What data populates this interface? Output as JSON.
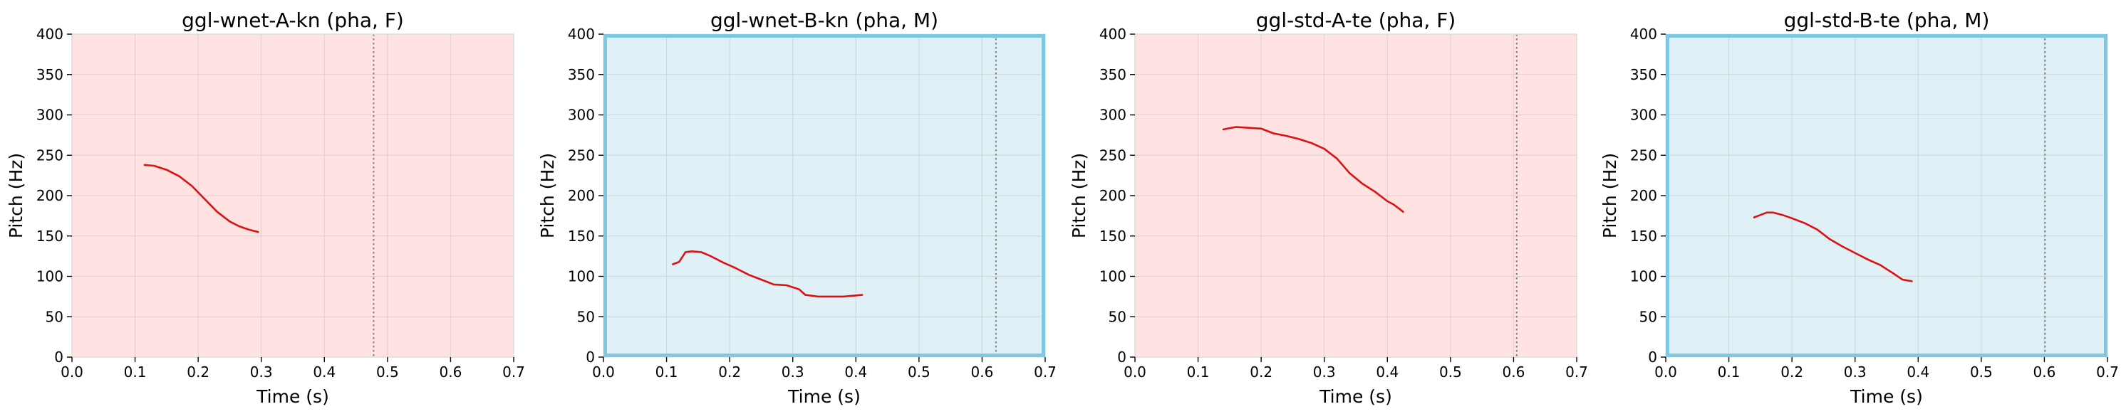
{
  "chart_data": [
    {
      "type": "line",
      "title": "ggl-wnet-A-kn (pha, F)",
      "xlabel": "Time (s)",
      "ylabel": "Pitch (Hz)",
      "xlim": [
        0,
        0.7
      ],
      "ylim": [
        0,
        400
      ],
      "xticks": [
        "0.0",
        "0.1",
        "0.2",
        "0.3",
        "0.4",
        "0.5",
        "0.6",
        "0.7"
      ],
      "yticks": [
        "0",
        "50",
        "100",
        "150",
        "200",
        "250",
        "300",
        "350",
        "400"
      ],
      "grid": true,
      "background": "#ffe3e2",
      "frame_color": "#dddddd",
      "highlighted": false,
      "line_color": "#dd1111",
      "vline_x": 0.478,
      "vline_color": "#888888",
      "series": [
        {
          "x": [
            0.115,
            0.13,
            0.15,
            0.17,
            0.19,
            0.21,
            0.23,
            0.25,
            0.265,
            0.28,
            0.295
          ],
          "y": [
            238,
            237,
            232,
            224,
            212,
            196,
            180,
            168,
            162,
            158,
            155
          ]
        }
      ]
    },
    {
      "type": "line",
      "title": "ggl-wnet-B-kn (pha, M)",
      "xlabel": "Time (s)",
      "ylabel": "Pitch (Hz)",
      "xlim": [
        0,
        0.7
      ],
      "ylim": [
        0,
        400
      ],
      "xticks": [
        "0.0",
        "0.1",
        "0.2",
        "0.3",
        "0.4",
        "0.5",
        "0.6",
        "0.7"
      ],
      "yticks": [
        "0",
        "50",
        "100",
        "150",
        "200",
        "250",
        "300",
        "350",
        "400"
      ],
      "grid": true,
      "background": "#dff0f6",
      "frame_color": "#7ec8e3",
      "highlighted": true,
      "line_color": "#dd1111",
      "vline_x": 0.622,
      "vline_color": "#888888",
      "series": [
        {
          "x": [
            0.11,
            0.12,
            0.13,
            0.14,
            0.155,
            0.17,
            0.19,
            0.21,
            0.23,
            0.25,
            0.27,
            0.29,
            0.31,
            0.32,
            0.34,
            0.36,
            0.38,
            0.41
          ],
          "y": [
            115,
            118,
            130,
            131,
            130,
            125,
            117,
            110,
            102,
            96,
            90,
            89,
            84,
            77,
            75,
            75,
            75,
            77
          ]
        }
      ]
    },
    {
      "type": "line",
      "title": "ggl-std-A-te (pha, F)",
      "xlabel": "Time (s)",
      "ylabel": "Pitch (Hz)",
      "xlim": [
        0,
        0.7
      ],
      "ylim": [
        0,
        400
      ],
      "xticks": [
        "0.0",
        "0.1",
        "0.2",
        "0.3",
        "0.4",
        "0.5",
        "0.6",
        "0.7"
      ],
      "yticks": [
        "0",
        "50",
        "100",
        "150",
        "200",
        "250",
        "300",
        "350",
        "400"
      ],
      "grid": true,
      "background": "#ffe3e2",
      "frame_color": "#dddddd",
      "highlighted": false,
      "line_color": "#dd1111",
      "vline_x": 0.605,
      "vline_color": "#888888",
      "series": [
        {
          "x": [
            0.14,
            0.16,
            0.18,
            0.2,
            0.22,
            0.24,
            0.26,
            0.28,
            0.3,
            0.32,
            0.34,
            0.36,
            0.38,
            0.4,
            0.41,
            0.425
          ],
          "y": [
            282,
            285,
            284,
            283,
            277,
            274,
            270,
            265,
            258,
            246,
            228,
            215,
            205,
            193,
            189,
            180
          ]
        }
      ]
    },
    {
      "type": "line",
      "title": "ggl-std-B-te (pha, M)",
      "xlabel": "Time (s)",
      "ylabel": "Pitch (Hz)",
      "xlim": [
        0,
        0.7
      ],
      "ylim": [
        0,
        400
      ],
      "xticks": [
        "0.0",
        "0.1",
        "0.2",
        "0.3",
        "0.4",
        "0.5",
        "0.6",
        "0.7"
      ],
      "yticks": [
        "0",
        "50",
        "100",
        "150",
        "200",
        "250",
        "300",
        "350",
        "400"
      ],
      "grid": true,
      "background": "#dff0f6",
      "frame_color": "#7ec8e3",
      "highlighted": true,
      "line_color": "#dd1111",
      "vline_x": 0.601,
      "vline_color": "#888888",
      "series": [
        {
          "x": [
            0.14,
            0.15,
            0.16,
            0.17,
            0.185,
            0.2,
            0.22,
            0.24,
            0.26,
            0.28,
            0.3,
            0.32,
            0.34,
            0.36,
            0.375,
            0.39
          ],
          "y": [
            173,
            176,
            179,
            179,
            176,
            172,
            166,
            158,
            146,
            137,
            129,
            121,
            114,
            104,
            96,
            94
          ]
        }
      ]
    }
  ]
}
